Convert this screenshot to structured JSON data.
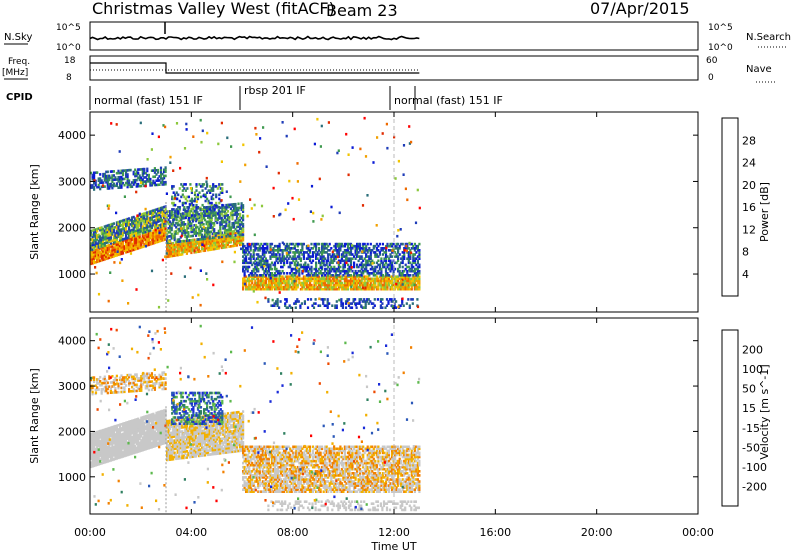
{
  "header": {
    "station": "Christmas Valley West (fitACF)",
    "beam": "Beam 23",
    "date": "07/Apr/2015"
  },
  "strips": {
    "nsky_label": "N.Sky",
    "nsky_ticks": [
      "10^5",
      "10^0"
    ],
    "nsearch_label": "N.Search",
    "nsearch_ticks": [
      "10^5",
      "10^0"
    ],
    "freq_label": "Freq.",
    "freq_unit": "[MHz]",
    "freq_ticks": [
      "18",
      "8"
    ],
    "nave_label": "Nave",
    "nave_ticks": [
      "60",
      "0"
    ],
    "cpid_label": "CPID",
    "cpid_modes": [
      {
        "label": "normal (fast) 151 IF",
        "start": 0,
        "end": 6
      },
      {
        "label": "rbsp 201 IF",
        "start": 6,
        "end": 12
      },
      {
        "label": "normal (fast) 151 IF",
        "start": 12,
        "end": 13
      }
    ]
  },
  "power_colorbar": {
    "label": "Power [dB]",
    "ticks": [
      "4",
      "8",
      "12",
      "16",
      "20",
      "24",
      "28"
    ],
    "colors": [
      "#0a1ad6",
      "#1f3cb8",
      "#2a6e7a",
      "#3f9a4f",
      "#8cc83c",
      "#f2c500",
      "#f2a000",
      "#ee6a00",
      "#e02a00",
      "#ff0000"
    ]
  },
  "velocity_colorbar": {
    "label": "Velocity [m s^-1]",
    "ticks": [
      "200",
      "100",
      "50",
      "15",
      "-15",
      "-50",
      "-100",
      "-200"
    ],
    "colors": [
      "#1a2bd8",
      "#2a58b8",
      "#2f8060",
      "#5cb84c",
      "#c8c8c8",
      "#c8c8c8",
      "#f2b000",
      "#f28000",
      "#ee4a00",
      "#ff0000"
    ]
  },
  "chart_data": [
    {
      "type": "heatmap",
      "title": "Power",
      "xlabel": "Time UT",
      "ylabel": "Slant Range [km]",
      "x_ticks": [
        "00:00",
        "04:00",
        "08:00",
        "12:00",
        "16:00",
        "20:00",
        "00:00"
      ],
      "y_ticks": [
        1000,
        2000,
        3000,
        4000
      ],
      "xlim": [
        0,
        24
      ],
      "ylim": [
        180,
        4500
      ],
      "regions": [
        {
          "t0": 0,
          "t1": 3,
          "r0": 1300,
          "r1": 2100,
          "level": "high"
        },
        {
          "t0": 0,
          "t1": 3,
          "r0": 2800,
          "r1": 3300,
          "level": "low"
        },
        {
          "t0": 3,
          "t1": 6,
          "r0": 1400,
          "r1": 2500,
          "level": "mid"
        },
        {
          "t0": 6,
          "t1": 13,
          "r0": 600,
          "r1": 1800,
          "level": "mid"
        }
      ]
    },
    {
      "type": "heatmap",
      "title": "Velocity",
      "xlabel": "Time UT",
      "ylabel": "Slant Range [km]",
      "x_ticks": [
        "00:00",
        "04:00",
        "08:00",
        "12:00",
        "16:00",
        "20:00",
        "00:00"
      ],
      "y_ticks": [
        1000,
        2000,
        3000,
        4000
      ],
      "xlim": [
        0,
        24
      ],
      "ylim": [
        180,
        4500
      ]
    }
  ],
  "axis": {
    "ylabel": "Slant Range [km]",
    "xlabel": "Time UT",
    "x_ticks": [
      "00:00",
      "04:00",
      "08:00",
      "12:00",
      "16:00",
      "20:00",
      "00:00"
    ],
    "y_ticks": [
      "1000",
      "2000",
      "3000",
      "4000"
    ]
  }
}
